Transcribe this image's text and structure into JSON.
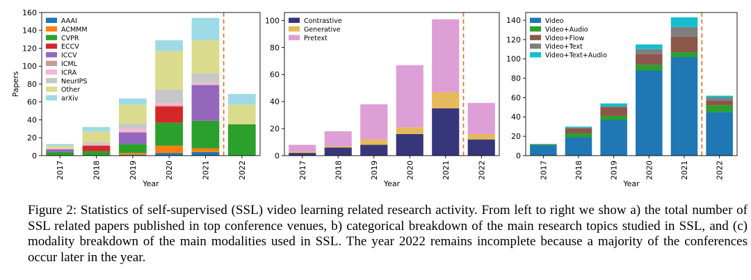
{
  "figure": {
    "caption": {
      "label": "Figure 2:",
      "text": "Statistics of self-supervised (SSL) video learning related research activity. From left to right we show a) the total number of SSL related papers published in top conference venues, b) categorical breakdown of the main research topics studied in SSL, and (c) modality breakdown of the main modalities used in SSL. The year 2022 remains incomplete because a majority of the conferences occur later in the year."
    }
  },
  "chart_data": [
    {
      "type": "bar",
      "stacked": true,
      "categories": [
        "2017",
        "2018",
        "2019",
        "2020",
        "2021",
        "2022"
      ],
      "xlabel": "Year",
      "ylabel": "Papers",
      "ylim": [
        0,
        160
      ],
      "yticks": [
        0,
        20,
        40,
        60,
        80,
        100,
        120,
        140,
        160
      ],
      "legend_position": "top-left",
      "marker_line": {
        "between": [
          "2021",
          "2022"
        ],
        "style": "dashed",
        "color": "#e07b39"
      },
      "series": [
        {
          "name": "AAAI",
          "color": "#1f77b4",
          "values": [
            0,
            0,
            1,
            3,
            4,
            0
          ]
        },
        {
          "name": "ACMMM",
          "color": "#ff7f0e",
          "values": [
            0,
            0,
            2,
            8,
            4,
            0
          ]
        },
        {
          "name": "CVPR",
          "color": "#2ca02c",
          "values": [
            4,
            5,
            10,
            26,
            31,
            35
          ]
        },
        {
          "name": "ECCV",
          "color": "#d62728",
          "values": [
            0,
            6,
            0,
            18,
            0,
            0
          ]
        },
        {
          "name": "ICCV",
          "color": "#9467bd",
          "values": [
            3,
            0,
            13,
            0,
            40,
            0
          ]
        },
        {
          "name": "ICML",
          "color": "#c49c94",
          "values": [
            0,
            1,
            0,
            1,
            0,
            0
          ]
        },
        {
          "name": "ICRA",
          "color": "#f7b6d2",
          "values": [
            1,
            1,
            4,
            3,
            2,
            0
          ]
        },
        {
          "name": "NeurIPS",
          "color": "#c7c7c7",
          "values": [
            0,
            2,
            6,
            15,
            11,
            0
          ]
        },
        {
          "name": "Other",
          "color": "#dbdb8d",
          "values": [
            3,
            12,
            21,
            43,
            37,
            22
          ]
        },
        {
          "name": "arXiv",
          "color": "#9edae5",
          "values": [
            2,
            5,
            7,
            12,
            25,
            12
          ]
        }
      ]
    },
    {
      "type": "bar",
      "stacked": true,
      "categories": [
        "2017",
        "2018",
        "2019",
        "2020",
        "2021",
        "2022"
      ],
      "xlabel": "Year",
      "ylabel": "",
      "ylim": [
        0,
        106
      ],
      "yticks": [
        0,
        20,
        40,
        60,
        80,
        100
      ],
      "legend_position": "top-left",
      "marker_line": {
        "between": [
          "2021",
          "2022"
        ],
        "style": "dashed",
        "color": "#e07b39"
      },
      "series": [
        {
          "name": "Contrastive",
          "color": "#38367a",
          "values": [
            2,
            6,
            8,
            16,
            35,
            12
          ]
        },
        {
          "name": "Generative",
          "color": "#e6b95a",
          "values": [
            1,
            1,
            4,
            5,
            12,
            4
          ]
        },
        {
          "name": "Pretext",
          "color": "#de9ed6",
          "values": [
            5,
            11,
            26,
            46,
            54,
            23
          ]
        }
      ]
    },
    {
      "type": "bar",
      "stacked": true,
      "categories": [
        "2017",
        "2018",
        "2019",
        "2020",
        "2021",
        "2022"
      ],
      "xlabel": "Year",
      "ylabel": "",
      "ylim": [
        0,
        148
      ],
      "yticks": [
        0,
        20,
        40,
        60,
        80,
        100,
        120,
        140
      ],
      "legend_position": "top-left",
      "marker_line": {
        "between": [
          "2021",
          "2022"
        ],
        "style": "dashed",
        "color": "#e07b39"
      },
      "series": [
        {
          "name": "Video",
          "color": "#1f77b4",
          "values": [
            11,
            19,
            37,
            88,
            102,
            45
          ]
        },
        {
          "name": "Video+Audio",
          "color": "#2ca02c",
          "values": [
            1,
            4,
            4,
            6,
            5,
            7
          ]
        },
        {
          "name": "Video+Flow",
          "color": "#8c564b",
          "values": [
            0,
            5,
            9,
            11,
            16,
            5
          ]
        },
        {
          "name": "Video+Text",
          "color": "#7f7f7f",
          "values": [
            0,
            1,
            1,
            5,
            10,
            3
          ]
        },
        {
          "name": "Video+Text+Audio",
          "color": "#17becf",
          "values": [
            0,
            1,
            3,
            5,
            10,
            2
          ]
        }
      ]
    }
  ]
}
